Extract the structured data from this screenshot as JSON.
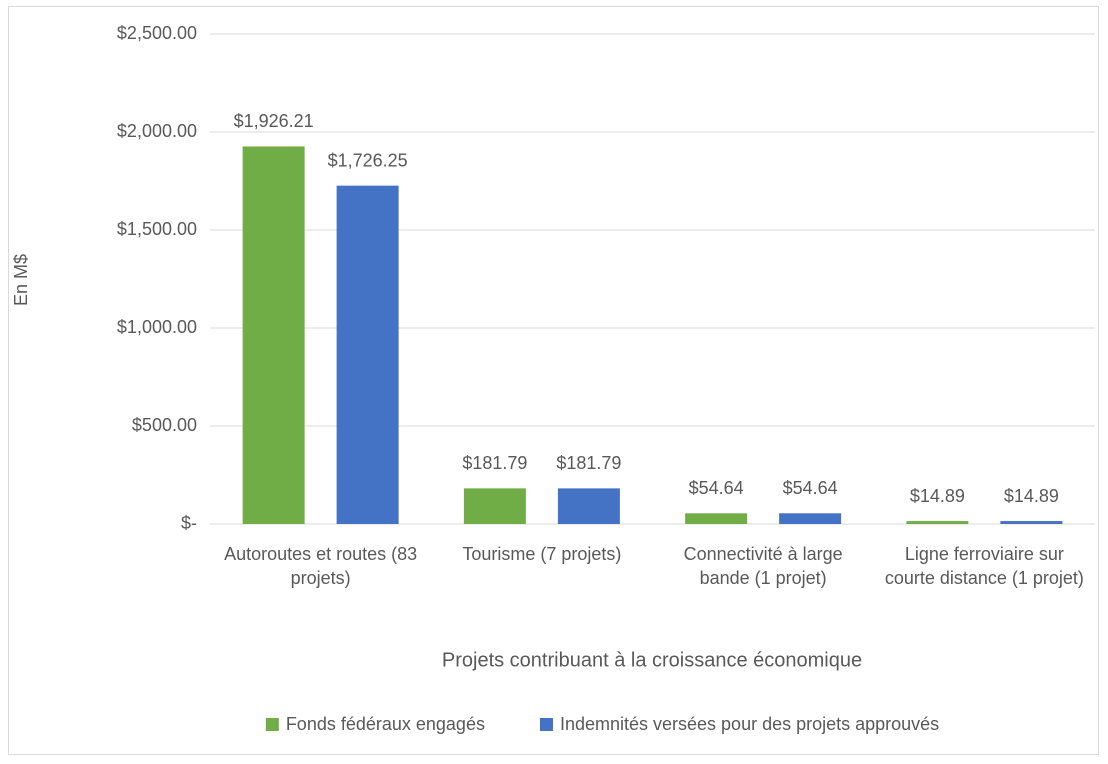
{
  "chart_data": {
    "type": "bar",
    "categories": [
      "Autoroutes et routes (83 projets)",
      "Tourisme (7 projets)",
      "Connectivité à large bande (1 projet)",
      "Ligne ferroviaire sur courte distance (1 projet)"
    ],
    "series": [
      {
        "name": "Fonds fédéraux engagés",
        "color": "#70ad47",
        "values": [
          1926.21,
          181.79,
          54.64,
          14.89
        ],
        "value_labels": [
          "$1,926.21",
          "$181.79",
          "$54.64",
          "$14.89"
        ]
      },
      {
        "name": "Indemnités versées pour des projets approuvés",
        "color": "#4472c4",
        "values": [
          1726.25,
          181.79,
          54.64,
          14.89
        ],
        "value_labels": [
          "$1,726.25",
          "$181.79",
          "$54.64",
          "$14.89"
        ]
      }
    ],
    "ylabel": "En M$",
    "xlabel": "Projets contribuant à la croissance économique",
    "ylim": [
      0,
      2500
    ],
    "yticks": [
      {
        "value": 0,
        "label": "$-"
      },
      {
        "value": 500,
        "label": "$500.00"
      },
      {
        "value": 1000,
        "label": "$1,000.00"
      },
      {
        "value": 1500,
        "label": "$1,500.00"
      },
      {
        "value": 2000,
        "label": "$2,000.00"
      },
      {
        "value": 2500,
        "label": "$2,500.00"
      }
    ],
    "grid": true,
    "legend": "bottom"
  }
}
